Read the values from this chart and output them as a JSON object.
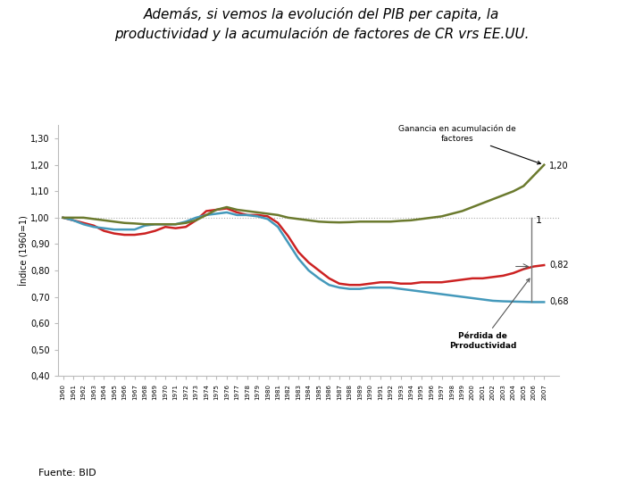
{
  "title_line1": "Además, si vemos la evolución del PIB per capita, la",
  "title_line2": "productividad y la acumulación de factores de CR vrs EE.UU.",
  "ylabel": "Índice (1960=1)",
  "xlabel_years": [
    1960,
    1961,
    1962,
    1963,
    1964,
    1965,
    1966,
    1967,
    1968,
    1969,
    1970,
    1971,
    1972,
    1973,
    1974,
    1975,
    1976,
    1977,
    1978,
    1979,
    1980,
    1981,
    1982,
    1983,
    1984,
    1985,
    1986,
    1987,
    1988,
    1989,
    1990,
    1991,
    1992,
    1993,
    1994,
    1995,
    1996,
    1997,
    1998,
    1999,
    2000,
    2001,
    2002,
    2003,
    2004,
    2005,
    2006,
    2007
  ],
  "gdp_values": [
    1.0,
    0.99,
    0.98,
    0.97,
    0.95,
    0.94,
    0.935,
    0.935,
    0.94,
    0.95,
    0.965,
    0.96,
    0.965,
    0.99,
    1.025,
    1.03,
    1.035,
    1.02,
    1.01,
    1.01,
    1.005,
    0.98,
    0.93,
    0.87,
    0.83,
    0.8,
    0.77,
    0.75,
    0.745,
    0.745,
    0.75,
    0.755,
    0.755,
    0.75,
    0.75,
    0.755,
    0.755,
    0.755,
    0.76,
    0.765,
    0.77,
    0.77,
    0.775,
    0.78,
    0.79,
    0.805,
    0.815,
    0.82
  ],
  "tfp_values": [
    1.0,
    0.99,
    0.975,
    0.965,
    0.96,
    0.955,
    0.955,
    0.955,
    0.97,
    0.975,
    0.975,
    0.975,
    0.985,
    1.0,
    1.01,
    1.015,
    1.02,
    1.01,
    1.01,
    1.005,
    0.995,
    0.965,
    0.905,
    0.845,
    0.8,
    0.77,
    0.745,
    0.735,
    0.73,
    0.73,
    0.735,
    0.735,
    0.735,
    0.73,
    0.725,
    0.72,
    0.715,
    0.71,
    0.705,
    0.7,
    0.695,
    0.69,
    0.685,
    0.683,
    0.682,
    0.681,
    0.68,
    0.68
  ],
  "accum_values": [
    1.0,
    1.0,
    1.0,
    0.995,
    0.99,
    0.985,
    0.98,
    0.978,
    0.975,
    0.975,
    0.975,
    0.975,
    0.98,
    0.99,
    1.01,
    1.03,
    1.04,
    1.03,
    1.025,
    1.02,
    1.015,
    1.01,
    1.0,
    0.995,
    0.99,
    0.985,
    0.983,
    0.982,
    0.983,
    0.985,
    0.985,
    0.985,
    0.985,
    0.988,
    0.99,
    0.995,
    1.0,
    1.005,
    1.015,
    1.025,
    1.04,
    1.055,
    1.07,
    1.085,
    1.1,
    1.12,
    1.16,
    1.2
  ],
  "gdp_color": "#cc2222",
  "tfp_color": "#4499bb",
  "accum_color": "#6b7a2e",
  "background_color": "#ffffff",
  "ylim": [
    0.4,
    1.35
  ],
  "yticks": [
    0.4,
    0.5,
    0.6,
    0.7,
    0.8,
    0.9,
    1.0,
    1.1,
    1.2,
    1.3
  ],
  "annotation_gain_label": "Ganancia en acumulación de\nfactores",
  "annotation_loss_label": "Pérdida de\nPrroductividad",
  "annotation_120": "1,20",
  "annotation_1": "1",
  "annotation_082": "0,82",
  "annotation_068": "0,68",
  "source_text": "Fuente: BID",
  "ref_line_y": 1.0
}
